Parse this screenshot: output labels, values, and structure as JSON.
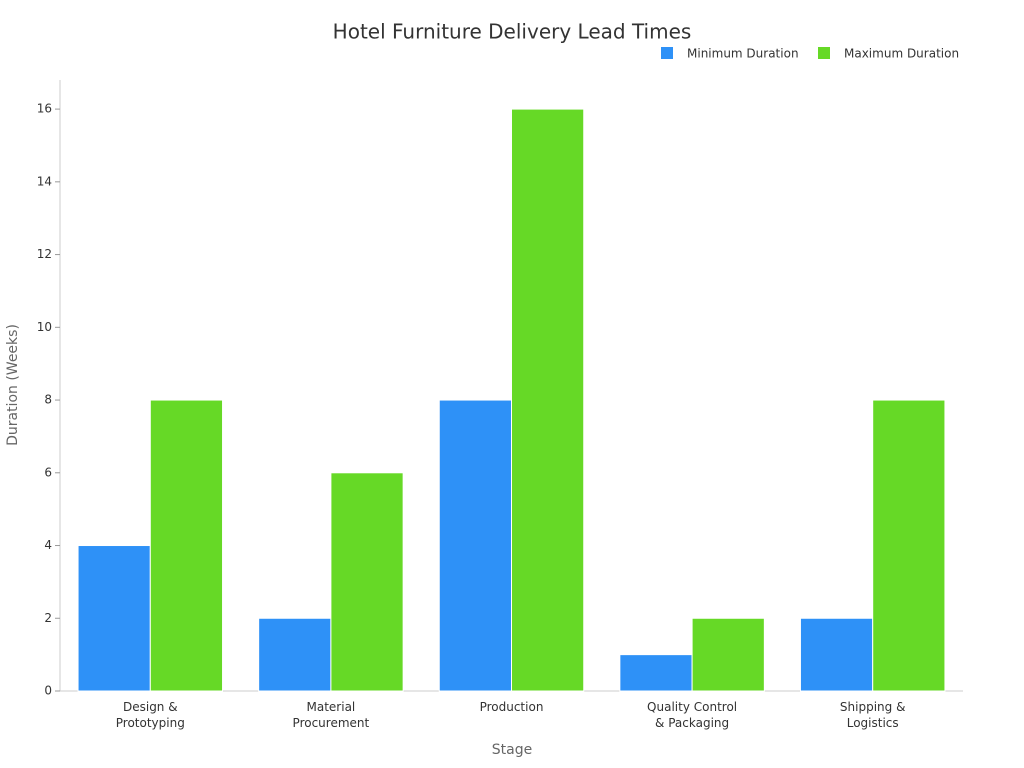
{
  "chart_data": {
    "type": "bar",
    "title": "Hotel Furniture Delivery Lead Times",
    "x_label": "Stage",
    "y_label": "Duration (Weeks)",
    "categories": [
      "Design &\nPrototyping",
      "Material\nProcurement",
      "Production",
      "Quality Control\n& Packaging",
      "Shipping &\nLogistics"
    ],
    "series": [
      {
        "name": "Minimum Duration",
        "color": "#2e91f7",
        "values": [
          4,
          2,
          8,
          1,
          2
        ]
      },
      {
        "name": "Maximum Duration",
        "color": "#66d926",
        "values": [
          8,
          6,
          16,
          2,
          8
        ]
      }
    ],
    "ylim": [
      0,
      16.8
    ],
    "yticks": [
      0,
      2,
      4,
      6,
      8,
      10,
      12,
      14,
      16
    ],
    "grid": false,
    "legend": "top-right"
  }
}
